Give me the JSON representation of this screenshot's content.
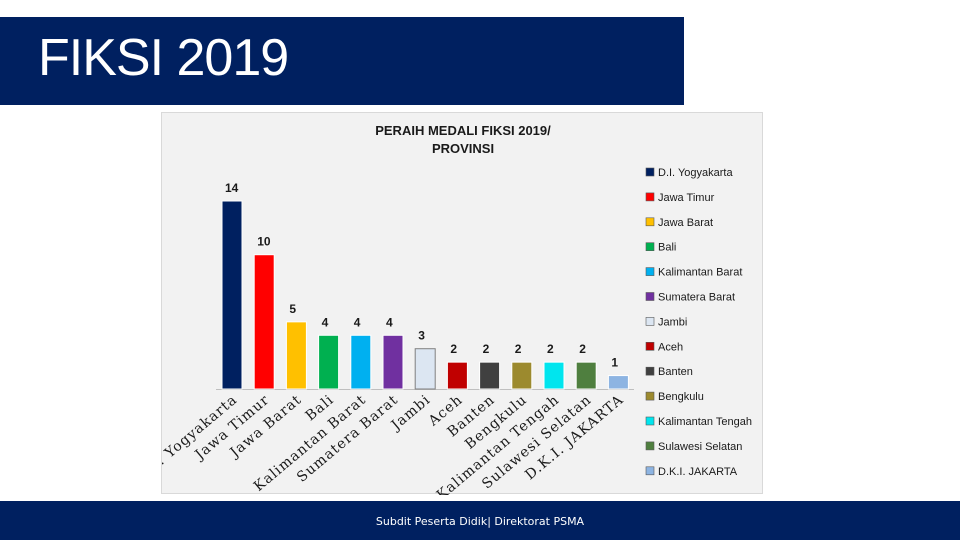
{
  "slide": {
    "title": "FIKSI 2019",
    "footer": "Subdit Peserta Didik| Direktorat PSMA"
  },
  "colors": {
    "navy": "#002060",
    "chart_bg": "#f2f2f2"
  },
  "chart_data": {
    "type": "bar",
    "title": "PERAIH MEDALI FIKSI 2019/ PROVINSI",
    "title_lines": [
      "PERAIH MEDALI FIKSI 2019/",
      "PROVINSI"
    ],
    "xlabel": "",
    "ylabel": "",
    "ylim": [
      0,
      14
    ],
    "grid": false,
    "legend_position": "right",
    "categories": [
      "D.I. Yogyakarta",
      "Jawa Timur",
      "Jawa Barat",
      "Bali",
      "Kalimantan Barat",
      "Sumatera Barat",
      "Jambi",
      "Aceh",
      "Banten",
      "Bengkulu",
      "Kalimantan Tengah",
      "Sulawesi Selatan",
      "D.K.I. JAKARTA"
    ],
    "values": [
      14,
      10,
      5,
      4,
      4,
      4,
      3,
      2,
      2,
      2,
      2,
      2,
      1
    ],
    "colors": [
      "#002060",
      "#ff0000",
      "#ffc000",
      "#00b050",
      "#00b0f0",
      "#7030a0",
      "#dce6f2",
      "#c00000",
      "#404040",
      "#9c8a2e",
      "#00e5ee",
      "#4f7f3f",
      "#8db4e2"
    ]
  }
}
